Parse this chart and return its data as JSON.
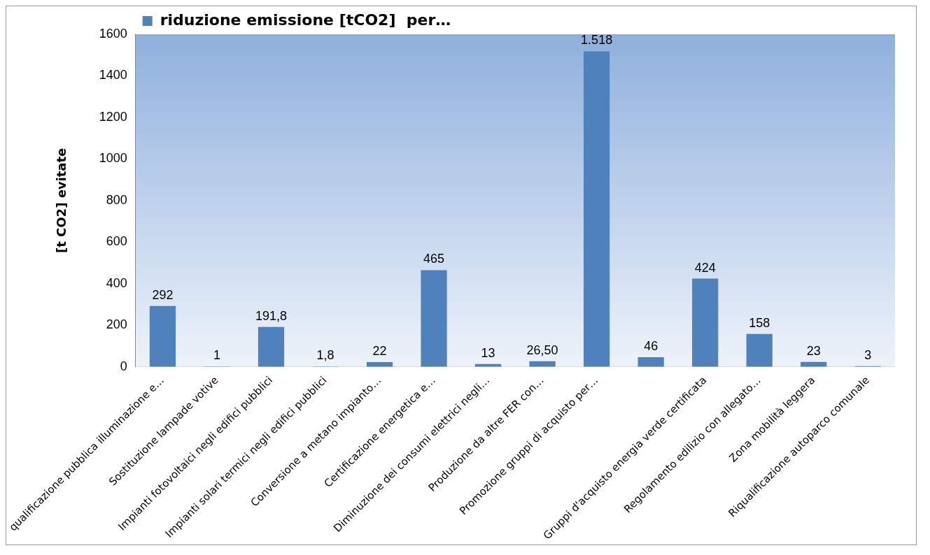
{
  "chart_data": {
    "type": "bar",
    "ylabel": "[t CO2] evitate",
    "categories": [
      "qualificazione pubblica illuminazione e…",
      "Sostituzione lampade votive",
      "Impianti fotovoltaici negli edifici pubblici",
      "Impianti solari termici negli edifici pubblici",
      "Conversione a metano impianto…",
      "Certificazione energetica e…",
      "Diminuzione dei consumi elettrici negli…",
      "Produzione da altre FER con…",
      "Promozione gruppi di acquisto per…",
      null,
      "Gruppi d'acquisto energia verde certificata",
      "Regolamento edilizio con allegato…",
      "Zona mobilità leggera",
      "Riqualificazione autoparco comunale"
    ],
    "series": [
      {
        "name": "riduzione emissione [tCO2]  per…",
        "color": "#4f81bd",
        "values": [
          292,
          1,
          191.8,
          1.8,
          22,
          465,
          13,
          26.5,
          1518,
          46,
          424,
          158,
          23,
          3
        ],
        "value_labels": [
          "292",
          "1",
          "191,8",
          "1,8",
          "22",
          "465",
          "13",
          "26,50",
          "1.518",
          "46",
          "424",
          "158",
          "23",
          "3"
        ]
      }
    ],
    "ylim": [
      0,
      1600
    ],
    "yticks": [
      0,
      200,
      400,
      600,
      800,
      1000,
      1200,
      1400,
      1600
    ],
    "grid": false,
    "legend": "top left"
  }
}
